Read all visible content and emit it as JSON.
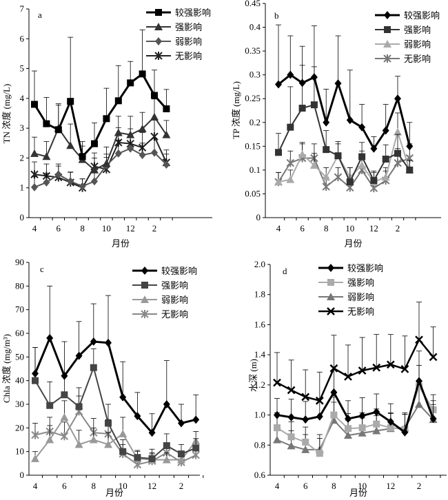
{
  "chart_data": [
    {
      "type": "line",
      "panel_label": "a",
      "ylabel": "TN 浓度 (mg/L)",
      "xlabel": "月份",
      "ylim": [
        0,
        7
      ],
      "yticks": [
        "0",
        "1",
        "2",
        "3",
        "4",
        "5",
        "6",
        "7"
      ],
      "x_tick_labels": [
        "4",
        "6",
        "8",
        "10",
        "12",
        "2"
      ],
      "legend_position": "top-right",
      "series": [
        {
          "name": "较强影响",
          "color": "#000000",
          "marker": "square",
          "width": 3,
          "values": [
            3.8,
            3.15,
            2.95,
            3.9,
            2.05,
            2.48,
            3.32,
            3.92,
            4.52,
            4.82,
            4.1,
            3.65
          ],
          "errors": [
            1.12,
            0.88,
            0.82,
            2.15,
            0.5,
            0.7,
            1.02,
            1.18,
            0.72,
            1.48,
            0.85,
            0.65
          ]
        },
        {
          "name": "强影响",
          "color": "#333333",
          "marker": "triangle",
          "width": 2,
          "values": [
            2.15,
            2.05,
            3.0,
            2.42,
            1.95,
            1.6,
            1.82,
            2.85,
            2.78,
            2.98,
            3.38,
            2.78
          ],
          "errors": [
            0.55,
            0.5,
            0.82,
            0.72,
            0.45,
            0.4,
            0.55,
            0.55,
            0.62,
            0.55,
            0.6,
            0.48
          ]
        },
        {
          "name": "弱影响",
          "color": "#555555",
          "marker": "diamond",
          "width": 2,
          "values": [
            1.02,
            1.18,
            1.45,
            1.22,
            1.05,
            1.22,
            1.75,
            2.15,
            2.32,
            2.1,
            2.18,
            1.78
          ],
          "errors": [
            0.35,
            0.3,
            0.35,
            0.3,
            0.25,
            0.3,
            0.38,
            0.45,
            0.45,
            0.4,
            0.48,
            0.35
          ]
        },
        {
          "name": "无影响",
          "color": "#222222",
          "marker": "star",
          "width": 2,
          "values": [
            1.45,
            1.4,
            1.35,
            1.18,
            1.0,
            1.72,
            1.62,
            2.52,
            2.48,
            2.35,
            2.72,
            1.85
          ],
          "errors": [
            0.42,
            0.4,
            0.38,
            0.35,
            0.3,
            0.45,
            0.4,
            0.5,
            0.5,
            0.5,
            0.55,
            0.42
          ]
        }
      ]
    },
    {
      "type": "line",
      "panel_label": "b",
      "ylabel": "TP 浓度 (mg/L)",
      "xlabel": "月份",
      "ylim": [
        0,
        0.45
      ],
      "yticks": [
        "0",
        "0.05",
        "0.1",
        "0.15",
        "0.2",
        "0.25",
        "0.3",
        "0.35",
        "0.4",
        "0.45"
      ],
      "x_tick_labels": [
        "4",
        "6",
        "8",
        "10",
        "12",
        "2"
      ],
      "legend_position": "top-right",
      "series": [
        {
          "name": "较强影响",
          "color": "#000000",
          "marker": "diamond",
          "width": 3,
          "values": [
            0.28,
            0.3,
            0.283,
            0.295,
            0.2,
            0.282,
            0.205,
            0.19,
            0.145,
            0.183,
            0.25,
            0.15
          ],
          "errors": [
            0.125,
            0.082,
            0.077,
            0.108,
            0.07,
            0.1,
            0.105,
            0.048,
            0.025,
            0.055,
            0.047,
            0.05
          ]
        },
        {
          "name": "强影响",
          "color": "#333333",
          "marker": "square",
          "width": 2,
          "values": [
            0.137,
            0.19,
            0.23,
            0.237,
            0.143,
            0.13,
            0.075,
            0.128,
            0.078,
            0.123,
            0.135,
            0.1
          ],
          "errors": [
            0.04,
            0.085,
            0.09,
            0.08,
            0.04,
            0.03,
            0.03,
            0.03,
            0.02,
            0.03,
            0.04,
            0.02
          ]
        },
        {
          "name": "弱影响",
          "color": "#aaaaaa",
          "marker": "triangle",
          "width": 2,
          "values": [
            0.075,
            0.08,
            0.133,
            0.11,
            0.085,
            0.13,
            0.085,
            0.11,
            0.075,
            0.085,
            0.18,
            0.1
          ],
          "errors": [
            0.02,
            0.02,
            0.025,
            0.025,
            0.02,
            0.025,
            0.02,
            0.03,
            0.02,
            0.02,
            0.04,
            0.02
          ]
        },
        {
          "name": "无影响",
          "color": "#777777",
          "marker": "star",
          "width": 2,
          "values": [
            0.075,
            0.115,
            0.125,
            0.125,
            0.065,
            0.085,
            0.063,
            0.1,
            0.062,
            0.078,
            0.115,
            0.125
          ],
          "errors": [
            0.02,
            0.025,
            0.03,
            0.03,
            0.02,
            0.02,
            0.02,
            0.025,
            0.02,
            0.02,
            0.03,
            0.03
          ]
        }
      ]
    },
    {
      "type": "line",
      "panel_label": "c",
      "ylabel": "Chla 浓度 (mg/m³)",
      "xlabel": "月份",
      "ylim": [
        0,
        90
      ],
      "yticks": [
        "0",
        "10",
        "20",
        "30",
        "40",
        "50",
        "60",
        "70",
        "80",
        "90"
      ],
      "x_tick_labels": [
        "4",
        "6",
        "8",
        "10",
        "12",
        "2"
      ],
      "legend_position": "top-right",
      "series": [
        {
          "name": "较强影响",
          "color": "#000000",
          "marker": "diamond",
          "width": 3,
          "values": [
            43,
            58,
            42,
            50.5,
            56.5,
            56,
            33,
            25,
            18,
            30,
            22,
            23.5
          ],
          "errors": [
            11,
            22,
            14.5,
            14.5,
            16,
            20,
            15,
            10,
            8,
            18.5,
            8,
            10.5
          ]
        },
        {
          "name": "强影响",
          "color": "#444444",
          "marker": "square",
          "width": 2,
          "values": [
            40,
            29.5,
            34,
            29,
            45.5,
            22,
            10,
            7.5,
            7,
            12.5,
            9,
            11.5
          ],
          "errors": [
            14,
            10,
            8,
            8,
            8,
            8,
            5,
            3,
            4,
            5,
            4,
            4
          ]
        },
        {
          "name": "弱影响",
          "color": "#999999",
          "marker": "triangle",
          "width": 2,
          "values": [
            7,
            15,
            24.5,
            13,
            15,
            13,
            17.5,
            7,
            6.5,
            6.5,
            6.5,
            14.5
          ],
          "errors": [
            3,
            6,
            7,
            6,
            5,
            5,
            7,
            3,
            3,
            3,
            3,
            4
          ]
        },
        {
          "name": "无影响",
          "color": "#888888",
          "marker": "star",
          "width": 2,
          "values": [
            17,
            18.5,
            16.5,
            27,
            18,
            17.5,
            9,
            4.5,
            6,
            9.5,
            5.5,
            8.5
          ],
          "errors": [
            5,
            6,
            6,
            6.5,
            6,
            6,
            4,
            3,
            3,
            4,
            3,
            4
          ]
        }
      ]
    },
    {
      "type": "line",
      "panel_label": "d",
      "ylabel": "水深 (m)",
      "xlabel": "月份",
      "ylim": [
        0.6,
        2.0
      ],
      "yticks": [
        "0.6",
        "0.8",
        "1.0",
        "1.2",
        "1.4",
        "1.6",
        "1.8",
        "2.0"
      ],
      "x_tick_labels": [
        "4",
        "6",
        "8",
        "10",
        "12",
        "2"
      ],
      "legend_position": "top-right",
      "series": [
        {
          "name": "较强影响",
          "color": "#000000",
          "marker": "diamond",
          "width": 3,
          "values": [
            1.0,
            0.985,
            0.97,
            0.99,
            1.15,
            0.975,
            0.995,
            1.02,
            0.955,
            0.885,
            1.225,
            0.975
          ],
          "errors": [
            0.11,
            0.12,
            0.12,
            0.12,
            0.15,
            0.12,
            0.12,
            0.12,
            0.12,
            0.12,
            0.2,
            0.12
          ]
        },
        {
          "name": "强影响",
          "color": "#aaaaaa",
          "marker": "square",
          "width": 2,
          "values": [
            0.915,
            0.855,
            0.82,
            0.745,
            1.0,
            0.91,
            0.915,
            0.94,
            0.915,
            0.905,
            1.19,
            1.035
          ],
          "errors": [
            0.1,
            0.1,
            0.1,
            0.1,
            0.12,
            0.1,
            0.1,
            0.1,
            0.1,
            0.1,
            0.14,
            0.1
          ]
        },
        {
          "name": "弱影响",
          "color": "#777777",
          "marker": "triangle",
          "width": 2,
          "values": [
            0.835,
            0.795,
            0.77,
            0.77,
            0.965,
            0.865,
            0.88,
            0.895,
            0.91,
            0.915,
            1.07,
            0.97
          ],
          "errors": [
            0.1,
            0.1,
            0.1,
            0.1,
            0.12,
            0.1,
            0.1,
            0.1,
            0.1,
            0.1,
            0.12,
            0.1
          ]
        },
        {
          "name": "无影响",
          "color": "#000000",
          "marker": "x",
          "width": 2.5,
          "values": [
            1.215,
            1.165,
            1.12,
            1.095,
            1.31,
            1.255,
            1.295,
            1.315,
            1.335,
            1.305,
            1.5,
            1.385
          ],
          "errors": [
            0.2,
            0.2,
            0.18,
            0.19,
            0.22,
            0.21,
            0.22,
            0.22,
            0.2,
            0.22,
            0.25,
            0.2
          ]
        }
      ]
    }
  ]
}
